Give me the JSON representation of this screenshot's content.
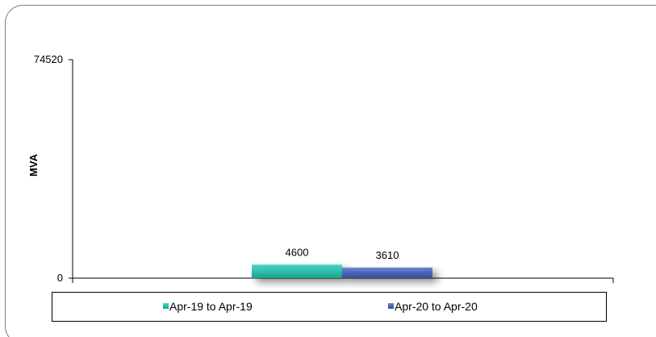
{
  "chart_data": {
    "type": "bar",
    "title": "",
    "xlabel": "",
    "ylabel": "MVA",
    "ylim": [
      0,
      74520
    ],
    "y_ticks": [
      "0",
      "74520"
    ],
    "grid": false,
    "legend_position": "bottom",
    "series": [
      {
        "name": "Apr-19 to Apr-19",
        "values": [
          4600
        ],
        "color": "#35c4b0"
      },
      {
        "name": "Apr-20 to Apr-20",
        "values": [
          3610
        ],
        "color": "#4a63b4"
      }
    ]
  }
}
